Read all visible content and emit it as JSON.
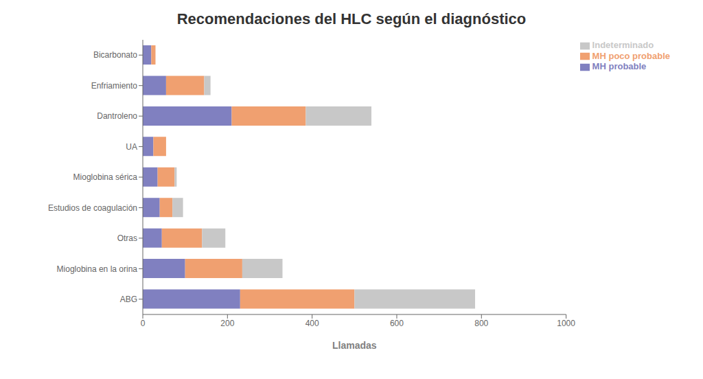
{
  "chart_data": {
    "type": "bar",
    "title": "Recomendaciones del HLC según el diagnóstico",
    "xlabel": "Llamadas",
    "orientation": "horizontal",
    "stacked": true,
    "categories": [
      "ABG",
      "Mioglobina en la orina",
      "Otras",
      "Estudios de coagulación",
      "Mioglobina sérica",
      "UA",
      "Dantroleno",
      "Enfriamiento",
      "Bicarbonato"
    ],
    "series": [
      {
        "name": "MH probable",
        "color": "#8080c0",
        "values": [
          230,
          100,
          45,
          40,
          35,
          25,
          210,
          55,
          20
        ]
      },
      {
        "name": "MH poco probable",
        "color": "#f0a070",
        "values": [
          270,
          135,
          95,
          30,
          40,
          30,
          175,
          90,
          10
        ]
      },
      {
        "name": "Indeterminado",
        "color": "#c8c8c8",
        "values": [
          285,
          95,
          55,
          25,
          5,
          0,
          155,
          15,
          0
        ]
      }
    ],
    "xlim": [
      0,
      1000
    ],
    "xticks": [
      0,
      200,
      400,
      600,
      800,
      1000
    ],
    "grid": false,
    "legend": "upper right"
  }
}
